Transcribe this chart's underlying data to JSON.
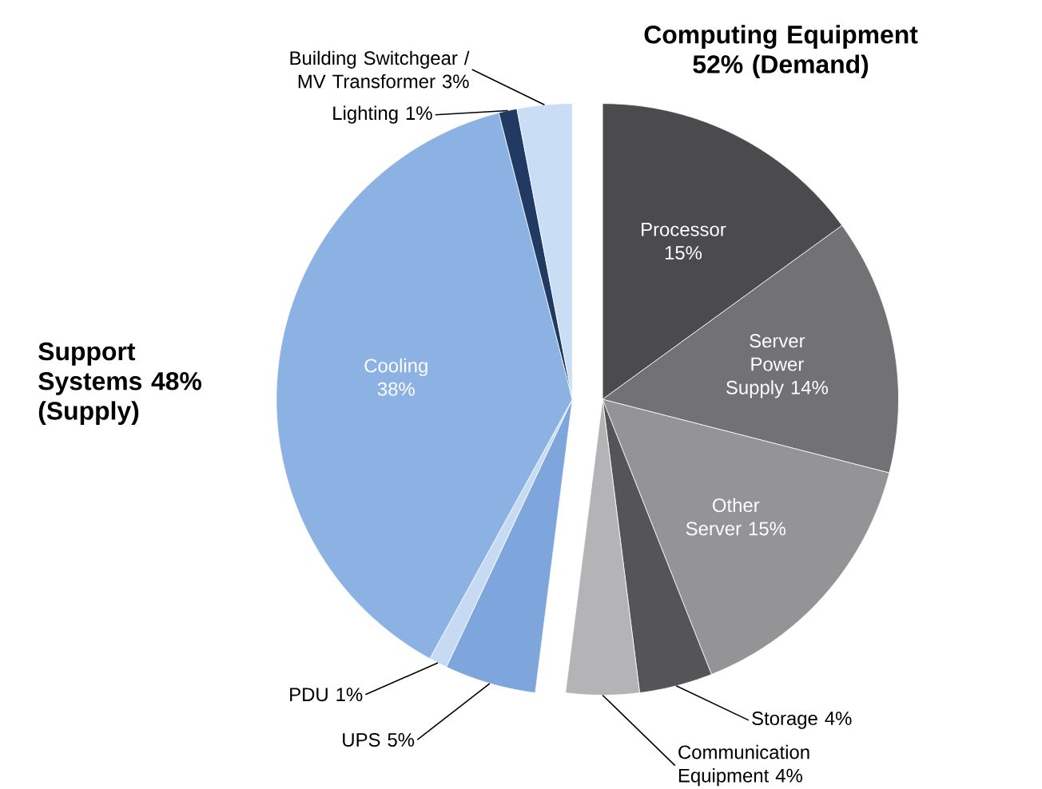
{
  "chart_data": {
    "type": "pie",
    "categories": [
      "Processor",
      "Server Power Supply",
      "Other Server",
      "Storage",
      "Communication Equipment",
      "UPS",
      "PDU",
      "Cooling",
      "Lighting",
      "Building Switchgear / MV Transformer"
    ],
    "values": [
      15,
      14,
      15,
      4,
      4,
      5,
      1,
      38,
      1,
      3
    ],
    "value_labels": [
      "15%",
      "14%",
      "15%",
      "4%",
      "4%",
      "5%",
      "1%",
      "38%",
      "1%",
      "3%"
    ],
    "colors": [
      "#4b4b4d",
      "#727274",
      "#949496",
      "#555557",
      "#b4b4b6",
      "#7ea6dc",
      "#c6dbf3",
      "#8cb2e4",
      "#203a64",
      "#c9ddf4"
    ],
    "annotations": [
      "Computing Equipment 52% (Demand)",
      "Support Systems 48% (Supply)"
    ]
  }
}
